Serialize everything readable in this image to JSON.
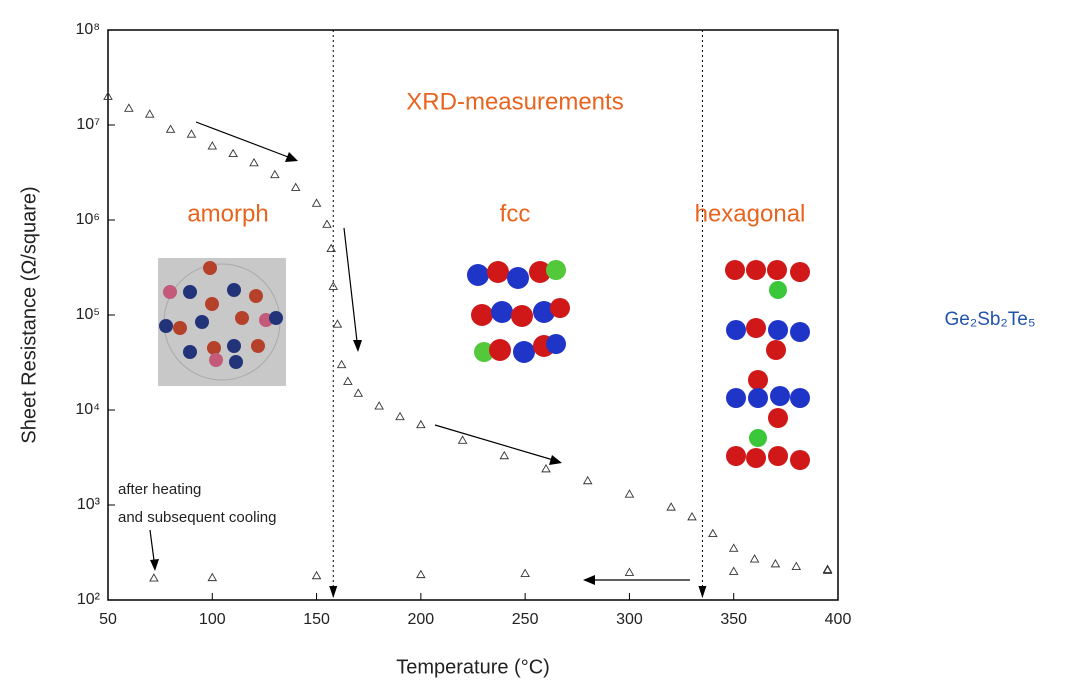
{
  "chart_data": {
    "type": "scatter",
    "x_label": "Temperature (°C)",
    "y_label": "Sheet Resistance (Ω/square)",
    "annotations": [
      "XRD-measurements",
      "amorph",
      "fcc",
      "hexagonal",
      "after heating",
      "and subsequent cooling"
    ],
    "side_label": "Ge₂Sb₂Te₅",
    "log_y": true,
    "xlim": [
      50,
      400
    ],
    "xticks": [
      50,
      100,
      150,
      200,
      250,
      300,
      350,
      400
    ],
    "ylim": [
      100,
      100000000
    ],
    "yticks": [
      {
        "value": 100,
        "label": "10²"
      },
      {
        "value": 1000,
        "label": "10³"
      },
      {
        "value": 10000,
        "label": "10⁴"
      },
      {
        "value": 100000,
        "label": "10⁵"
      },
      {
        "value": 1000000,
        "label": "10⁶"
      },
      {
        "value": 10000000,
        "label": "10⁷"
      },
      {
        "value": 100000000,
        "label": "10⁸"
      }
    ],
    "phase_lines": [
      158,
      335
    ],
    "series": [
      {
        "color": "#333333",
        "x": [
          50,
          60,
          70,
          80,
          90,
          100,
          110,
          120,
          130,
          140,
          150,
          155,
          157,
          158,
          160,
          162,
          165,
          170,
          180,
          190,
          200,
          220,
          240,
          260,
          280,
          300,
          320,
          330,
          340,
          350,
          360,
          370,
          380,
          395
        ],
        "values": [
          20000000,
          15000000,
          13000000,
          9000000,
          8000000,
          6000000,
          5000000,
          4000000,
          3000000,
          2200000,
          1500000,
          900000,
          500000,
          200000,
          80000,
          30000,
          20000,
          15000,
          11000,
          8500,
          7000,
          4800,
          3300,
          2400,
          1800,
          1300,
          950,
          750,
          500,
          350,
          270,
          240,
          225,
          210
        ]
      },
      {
        "color": "#333333",
        "x": [
          72,
          100,
          150,
          200,
          250,
          300,
          350,
          395
        ],
        "values": [
          170,
          172,
          180,
          185,
          190,
          195,
          200,
          205
        ]
      }
    ]
  }
}
